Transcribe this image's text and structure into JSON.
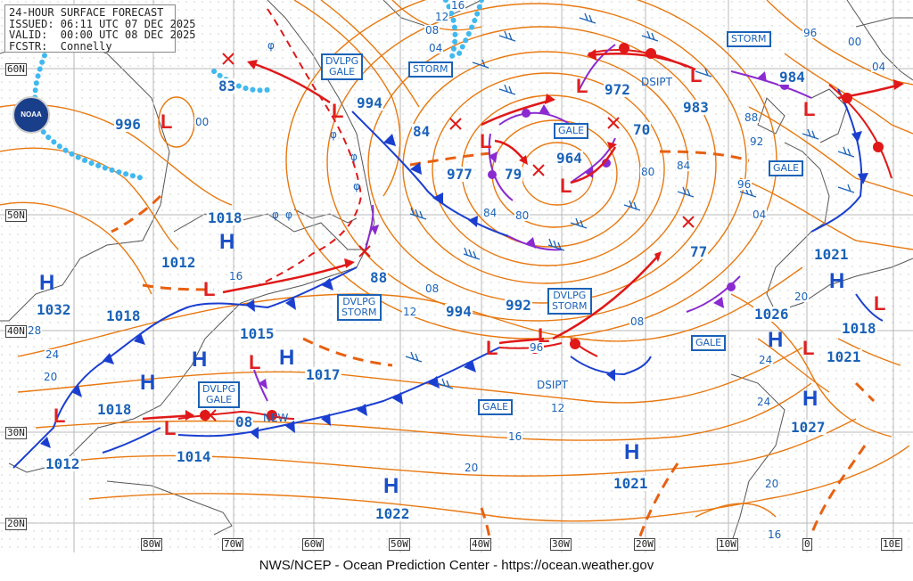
{
  "header": {
    "title": "24-HOUR SURFACE FORECAST",
    "issued": "ISSUED: 06:11 UTC 07 DEC 2025",
    "valid": "VALID:  00:00 UTC 08 DEC 2025",
    "forecaster": "FCSTR:  Connelly"
  },
  "footer": "NWS/NCEP - Ocean Prediction Center - https://ocean.weather.gov",
  "logo": "NOAA",
  "lat_labels": [
    "60N",
    "50N",
    "40N",
    "30N",
    "20N"
  ],
  "lon_labels": [
    "80W",
    "70W",
    "60W",
    "50W",
    "40W",
    "30W",
    "20W",
    "10W",
    "0",
    "10E"
  ],
  "warning_boxes": [
    {
      "id": "dvlpg-gale-1",
      "text": "DVLPG\nGALE"
    },
    {
      "id": "storm-1",
      "text": "STORM"
    },
    {
      "id": "storm-2",
      "text": "STORM"
    },
    {
      "id": "gale-1",
      "text": "GALE"
    },
    {
      "id": "gale-2",
      "text": "GALE"
    },
    {
      "id": "dvlpg-storm-1",
      "text": "DVLPG\nSTORM"
    },
    {
      "id": "dvlpg-storm-2",
      "text": "DVLPG\nSTORM"
    },
    {
      "id": "gale-3",
      "text": "GALE"
    },
    {
      "id": "dvlpg-gale-2",
      "text": "DVLPG\nGALE"
    },
    {
      "id": "gale-4",
      "text": "GALE"
    }
  ],
  "pressure_centers": [
    {
      "type": "L",
      "value": "996"
    },
    {
      "type": "L",
      "value": "83"
    },
    {
      "type": "L",
      "value": "994"
    },
    {
      "type": "L",
      "value": "84"
    },
    {
      "type": "L",
      "value": "977"
    },
    {
      "type": "L",
      "value": "79"
    },
    {
      "type": "L",
      "value": "964"
    },
    {
      "type": "L",
      "value": "972"
    },
    {
      "type": "L",
      "value": "70"
    },
    {
      "type": "L",
      "value": "983"
    },
    {
      "type": "L",
      "value": "984"
    },
    {
      "type": "L",
      "value": "77"
    },
    {
      "type": "L",
      "value": "88"
    },
    {
      "type": "L",
      "value": "994"
    },
    {
      "type": "L",
      "value": "992"
    },
    {
      "type": "L",
      "value": "1015"
    },
    {
      "type": "L",
      "value": "1017"
    },
    {
      "type": "L",
      "value": "08"
    },
    {
      "type": "L",
      "value": "1014"
    },
    {
      "type": "L",
      "value": "1018"
    },
    {
      "type": "L",
      "value": "1012"
    },
    {
      "type": "H",
      "value": "1018"
    },
    {
      "type": "H",
      "value": "1012"
    },
    {
      "type": "H",
      "value": "1032"
    },
    {
      "type": "H",
      "value": "1018"
    },
    {
      "type": "H",
      "value": "1022"
    },
    {
      "type": "H",
      "value": "1021"
    },
    {
      "type": "H",
      "value": "1026"
    },
    {
      "type": "H",
      "value": "1021"
    },
    {
      "type": "H",
      "value": "1027"
    },
    {
      "type": "H",
      "value": "1018"
    },
    {
      "type": "H",
      "value": "1021"
    }
  ],
  "isobar_labels": [
    "12",
    "04",
    "08",
    "16",
    "00",
    "00",
    "04",
    "96",
    "88",
    "92",
    "96",
    "84",
    "80",
    "80",
    "84",
    "04",
    "08",
    "12",
    "16",
    "20",
    "24",
    "28",
    "24",
    "20",
    "08",
    "12",
    "16",
    "20",
    "24",
    "20",
    "16",
    "96"
  ],
  "notes": {
    "dsipt_1": "DSIPT",
    "dsipt_2": "DSIPT",
    "new": "NEW"
  },
  "colors": {
    "isobar": "#e87810",
    "cold_front": "#1a3fd0",
    "warm_front": "#e01818",
    "occluded_front": "#8a2ad0",
    "trough": "#e86010",
    "ice_edge": "#40b8f0",
    "text_blue": "#1a62b8",
    "grid": "#b8b8b8"
  }
}
